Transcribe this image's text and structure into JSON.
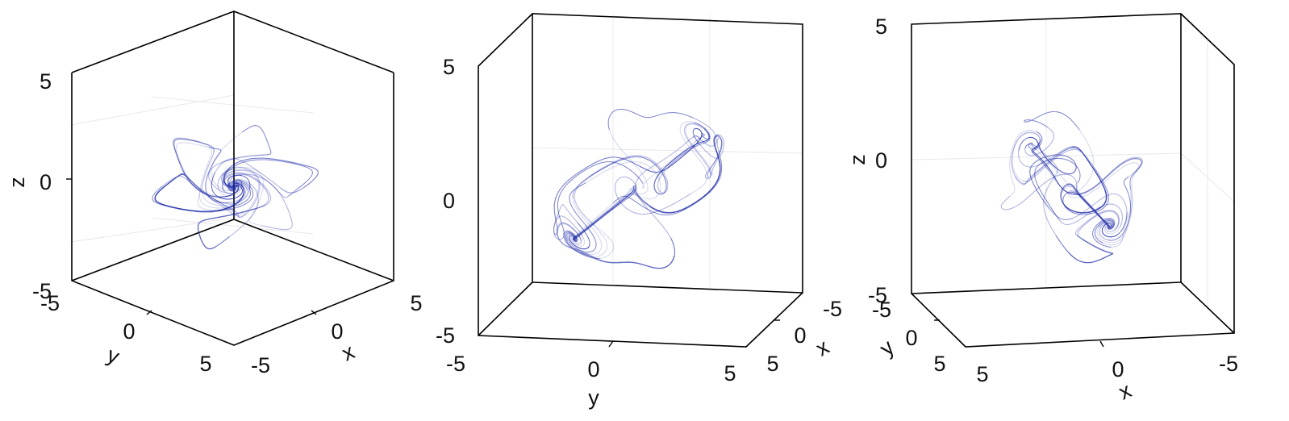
{
  "chart_data": [
    {
      "type": "line",
      "projection": "3d",
      "view": "isometric",
      "series_color": "#1f2ca8",
      "xlabel": "x",
      "ylabel": "y",
      "zlabel": "z",
      "xlim": [
        -5,
        5
      ],
      "ylim": [
        -5,
        5
      ],
      "zlim": [
        -5,
        5
      ],
      "xticks": [
        "-5",
        "0",
        "5"
      ],
      "yticks": [
        "-5",
        "0",
        "5"
      ],
      "zticks": [
        "-5",
        "0",
        "5"
      ],
      "grid": true,
      "legend": "none"
    },
    {
      "type": "line",
      "projection": "3d",
      "view": "front (y–z plane)",
      "series_color": "#1f2ca8",
      "xlabel": "x",
      "ylabel": "y",
      "zlabel": "",
      "xlim": [
        -5,
        5
      ],
      "ylim": [
        -5,
        5
      ],
      "zlim": [
        -5,
        5
      ],
      "xticks": [
        "-5",
        "0",
        "5"
      ],
      "yticks": [
        "-5",
        "0",
        "5"
      ],
      "zticks": [
        "-5",
        "0",
        "5"
      ],
      "grid": true,
      "legend": "none"
    },
    {
      "type": "line",
      "projection": "3d",
      "view": "side (x–z plane)",
      "series_color": "#1f2ca8",
      "xlabel": "x",
      "ylabel": "y",
      "zlabel": "z",
      "xlim": [
        -5,
        5
      ],
      "ylim": [
        -5,
        5
      ],
      "zlim": [
        -5,
        5
      ],
      "xticks": [
        "5",
        "0",
        "-5"
      ],
      "yticks": [
        "-5",
        "0",
        "5"
      ],
      "zticks": [
        "-5",
        "0",
        "5"
      ],
      "grid": true,
      "legend": "none"
    }
  ]
}
